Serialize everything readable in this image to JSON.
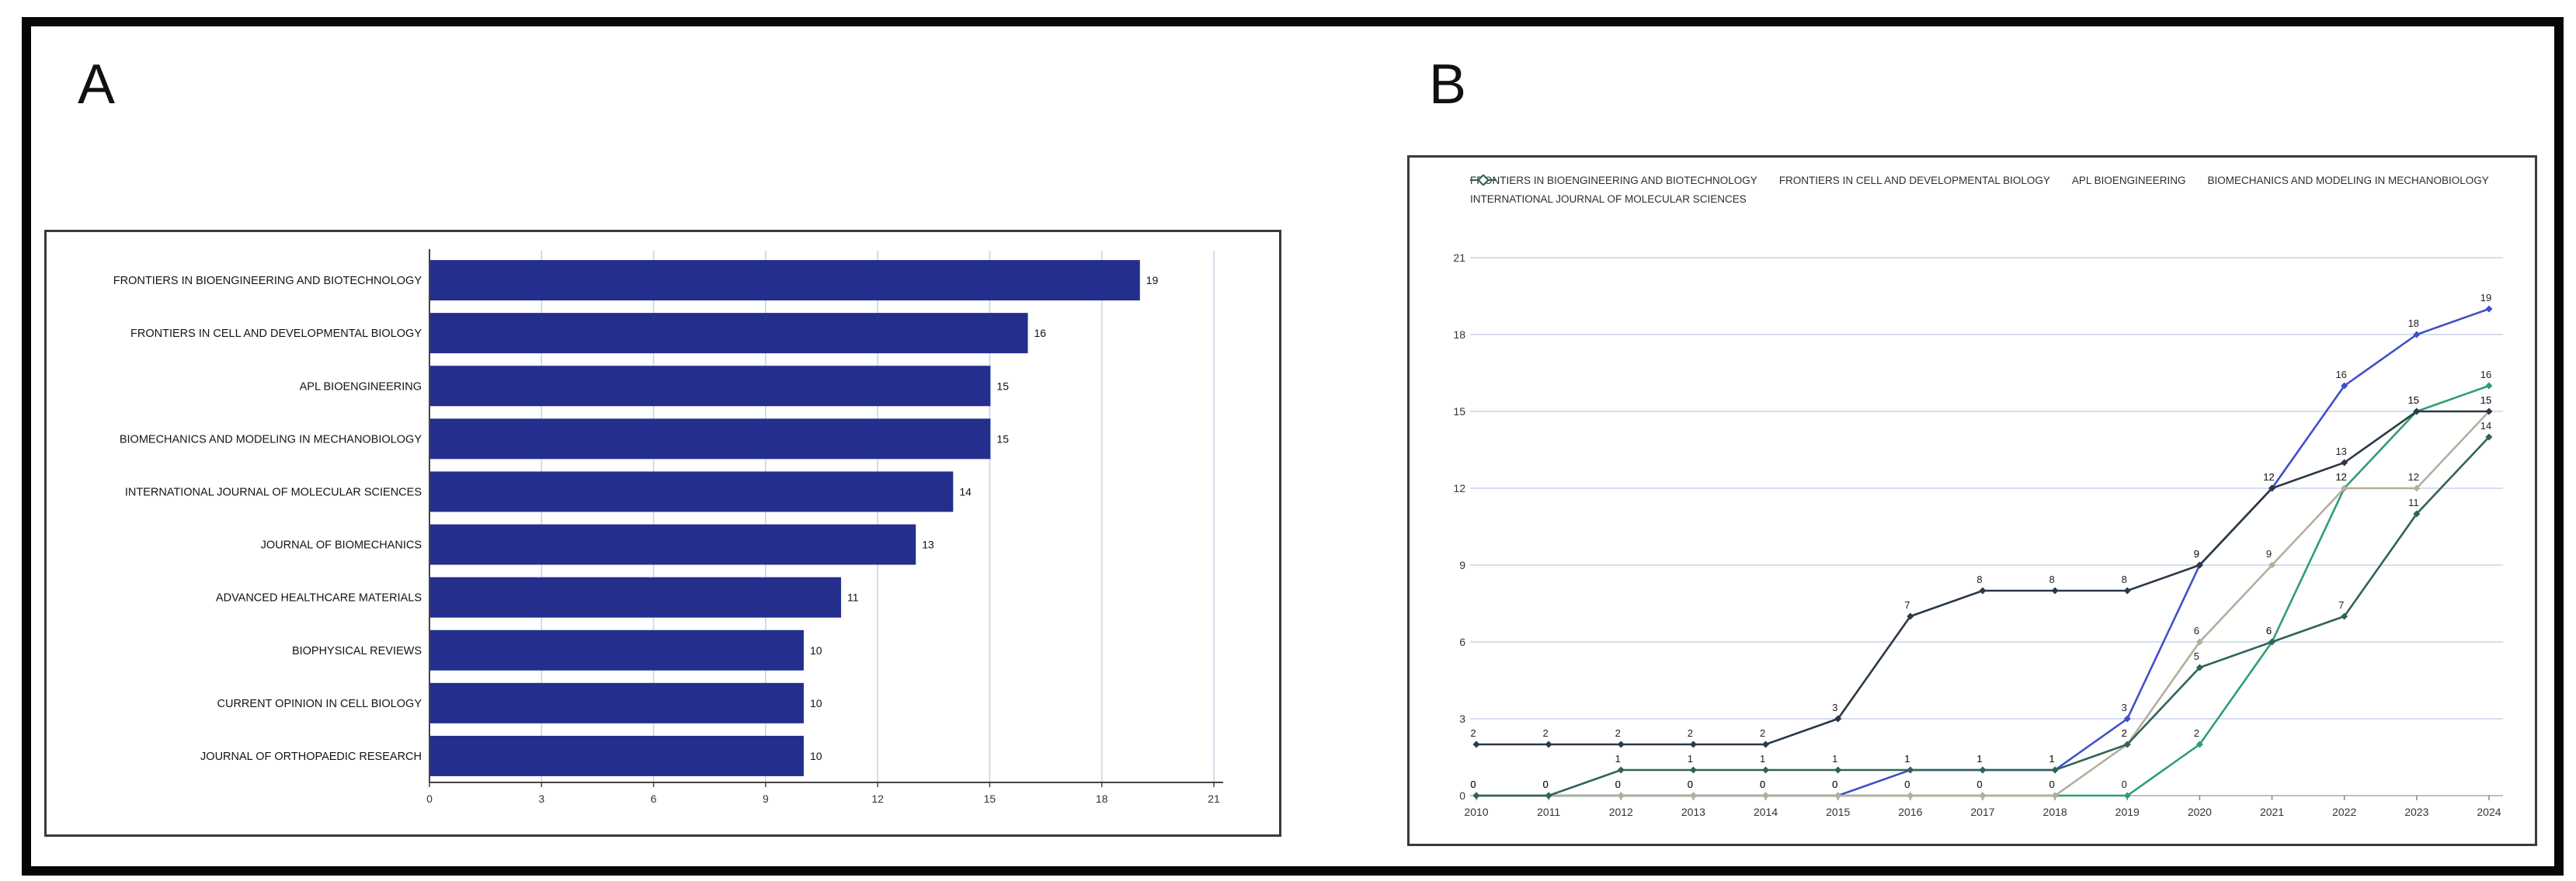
{
  "panels": {
    "a": {
      "letter": "A"
    },
    "b": {
      "letter": "B"
    }
  },
  "colors": {
    "bar_navy": "#242e8c",
    "grid_blue": "#c8d4ea",
    "axis_dark": "#444444",
    "axis_light": "#aaaaaa",
    "series_blue": "#4050c8",
    "series_green": "#2f9e74",
    "series_tan": "#b5ae9a",
    "series_slate": "#2b3847",
    "series_darkgreen": "#316358"
  },
  "chart_data": [
    {
      "type": "bar",
      "panel": "A",
      "orientation": "horizontal",
      "title": "",
      "xlabel": "",
      "ylabel": "",
      "categories": [
        "FRONTIERS IN BIOENGINEERING AND BIOTECHNOLOGY",
        "FRONTIERS IN CELL AND DEVELOPMENTAL BIOLOGY",
        "APL BIOENGINEERING",
        "BIOMECHANICS AND MODELING IN MECHANOBIOLOGY",
        "INTERNATIONAL JOURNAL OF MOLECULAR SCIENCES",
        "JOURNAL OF BIOMECHANICS",
        "ADVANCED HEALTHCARE MATERIALS",
        "BIOPHYSICAL REVIEWS",
        "CURRENT OPINION IN CELL BIOLOGY",
        "JOURNAL OF ORTHOPAEDIC RESEARCH"
      ],
      "values": [
        19,
        16,
        15,
        15,
        14,
        13,
        11,
        10,
        10,
        10
      ],
      "xlim": [
        0,
        21
      ],
      "xticks": [
        0,
        3,
        6,
        9,
        12,
        15,
        18,
        21
      ],
      "grid": true,
      "bar_color": "#242e8c"
    },
    {
      "type": "line",
      "panel": "B",
      "title": "",
      "xlabel": "",
      "ylabel": "",
      "x": [
        2010,
        2011,
        2012,
        2013,
        2014,
        2015,
        2016,
        2017,
        2018,
        2019,
        2020,
        2021,
        2022,
        2023,
        2024
      ],
      "ylim": [
        0,
        21
      ],
      "yticks": [
        0,
        3,
        6,
        9,
        12,
        15,
        18,
        21
      ],
      "grid": true,
      "legend_position": "top-left",
      "series": [
        {
          "name": "FRONTIERS IN BIOENGINEERING AND BIOTECHNOLOGY",
          "color": "#4050c8",
          "values": [
            0,
            0,
            0,
            0,
            0,
            0,
            1,
            1,
            1,
            3,
            9,
            12,
            16,
            18,
            19
          ]
        },
        {
          "name": "FRONTIERS IN CELL AND DEVELOPMENTAL BIOLOGY",
          "color": "#2f9e74",
          "values": [
            0,
            0,
            0,
            0,
            0,
            0,
            0,
            0,
            0,
            0,
            2,
            6,
            12,
            15,
            16
          ]
        },
        {
          "name": "APL BIOENGINEERING",
          "color": "#b5ae9a",
          "values": [
            0,
            0,
            0,
            0,
            0,
            0,
            0,
            0,
            0,
            2,
            6,
            9,
            12,
            12,
            15
          ]
        },
        {
          "name": "BIOMECHANICS AND MODELING IN MECHANOBIOLOGY",
          "color": "#2b3847",
          "values": [
            2,
            2,
            2,
            2,
            2,
            3,
            7,
            8,
            8,
            8,
            9,
            12,
            13,
            15,
            15
          ]
        },
        {
          "name": "INTERNATIONAL JOURNAL OF MOLECULAR SCIENCES",
          "color": "#316358",
          "values": [
            0,
            0,
            1,
            1,
            1,
            1,
            1,
            1,
            1,
            2,
            5,
            6,
            7,
            11,
            14
          ]
        }
      ]
    }
  ]
}
